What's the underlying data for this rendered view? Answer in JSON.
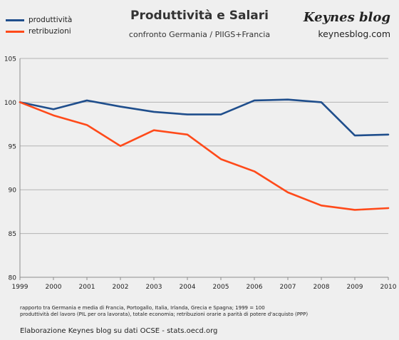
{
  "header": {
    "title": "Produttività e Salari",
    "subtitle": "confronto Germania / PIIGS+Francia",
    "brand": "Keynes blog",
    "brand_url": "keynesblog.com"
  },
  "legend": [
    {
      "label": "produttività",
      "color": "#1f4e8c"
    },
    {
      "label": "retribuzioni",
      "color": "#ff4a1a"
    }
  ],
  "notes": {
    "line1": "rapporto tra Germania e media di Francia, Portogallo, Italia, Irlanda, Grecia e Spagna; 1999  = 100",
    "line2": "produttività del lavoro (PIL per ora lavorata), totale economia; retribuzioni orarie a parità di potere d'acquisto (PPP)"
  },
  "source": "Elaborazione Keynes blog su dati OCSE - stats.oecd.org",
  "chart_data": {
    "type": "line",
    "title": "Produttività e Salari",
    "subtitle": "confronto Germania / PIIGS+Francia",
    "x": [
      "1999",
      "2000",
      "2001",
      "2002",
      "2003",
      "2004",
      "2005",
      "2006",
      "2007",
      "2008",
      "2009",
      "2010"
    ],
    "series": [
      {
        "name": "produttività",
        "color": "#1f4e8c",
        "values": [
          100,
          99.2,
          100.2,
          99.5,
          98.9,
          98.6,
          98.6,
          100.2,
          100.3,
          100.0,
          96.2,
          96.3
        ]
      },
      {
        "name": "retribuzioni",
        "color": "#ff4a1a",
        "values": [
          100,
          98.5,
          97.4,
          95.0,
          96.8,
          96.3,
          93.5,
          92.1,
          89.7,
          88.2,
          87.7,
          87.9
        ]
      }
    ],
    "ylim": [
      80,
      105
    ],
    "yticks": [
      80,
      85,
      90,
      95,
      100,
      105
    ],
    "grid": true,
    "legend_position": "top-left"
  }
}
